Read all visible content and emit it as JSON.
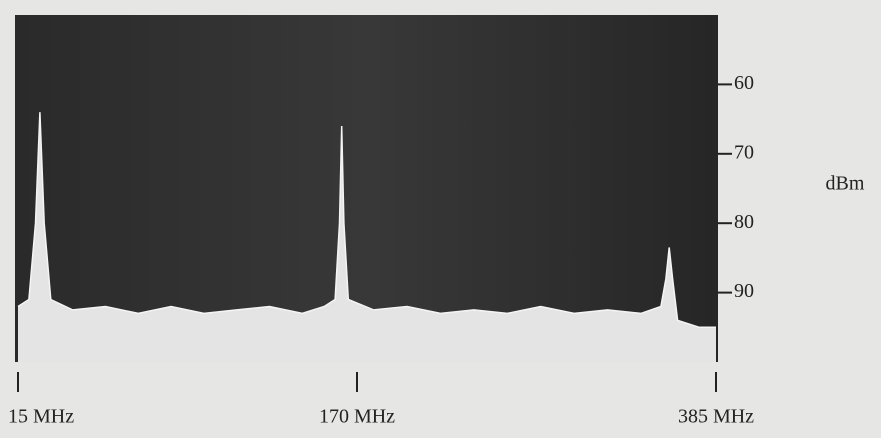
{
  "chart_data": {
    "type": "area",
    "y_label": "dBm",
    "x": [
      15,
      20,
      23,
      25,
      27,
      30,
      40,
      55,
      70,
      85,
      100,
      115,
      130,
      145,
      155,
      160,
      162,
      163,
      164,
      166,
      180,
      200,
      220,
      240,
      260,
      280,
      300,
      320,
      340,
      352,
      355,
      357,
      359,
      362,
      375,
      385
    ],
    "values": [
      92,
      91,
      80,
      64,
      80,
      91,
      92.5,
      92,
      93,
      92,
      93,
      92.5,
      92,
      93,
      92,
      91,
      80,
      66,
      80,
      91,
      92.5,
      92,
      93,
      92.5,
      93,
      92,
      93,
      92.5,
      93,
      92,
      88,
      83.5,
      88,
      94,
      95,
      95
    ],
    "xlim": [
      15,
      385
    ],
    "xticks": [
      {
        "value": 15,
        "label": "15 MHz"
      },
      {
        "value": 170,
        "label": "170 MHz"
      },
      {
        "value": 385,
        "label": "385 MHz"
      }
    ],
    "ylim": [
      50,
      100
    ],
    "yticks": [
      60,
      70,
      80,
      90
    ],
    "color": "#e4e4e4"
  }
}
